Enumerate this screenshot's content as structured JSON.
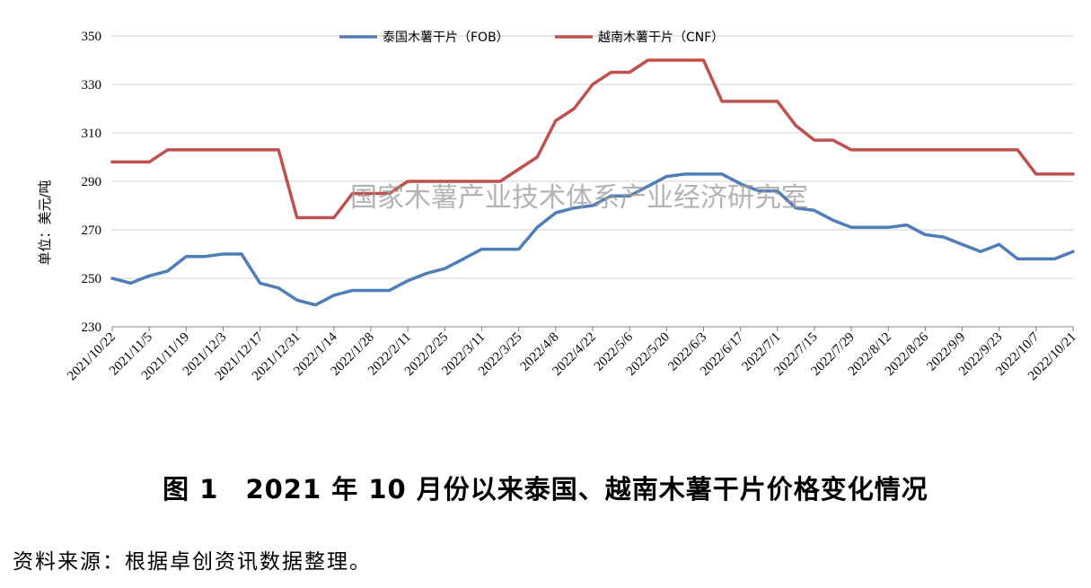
{
  "chart_data": {
    "type": "line",
    "ylabel": "单位：美元/吨",
    "ylim": [
      230,
      350
    ],
    "yticks": [
      230,
      250,
      270,
      290,
      310,
      330,
      350
    ],
    "grid": "horizontal",
    "legend_position": "top-center",
    "x_tick_labels": [
      "2021/10/22",
      "2021/11/5",
      "2021/11/19",
      "2021/12/3",
      "2021/12/17",
      "2021/12/31",
      "2022/1/14",
      "2022/1/28",
      "2022/2/11",
      "2022/2/25",
      "2022/3/11",
      "2022/3/25",
      "2022/4/8",
      "2022/4/22",
      "2022/5/6",
      "2022/5/20",
      "2022/6/3",
      "2022/6/17",
      "2022/7/1",
      "2022/7/15",
      "2022/7/29",
      "2022/8/12",
      "2022/8/26",
      "2022/9/9",
      "2022/9/23",
      "2022/10/7",
      "2022/10/21"
    ],
    "series": [
      {
        "name": "泰国木薯干片（FOB）",
        "color": "#4f7db8",
        "values": [
          250,
          248,
          251,
          253,
          259,
          259,
          260,
          260,
          248,
          246,
          241,
          239,
          243,
          245,
          245,
          245,
          249,
          252,
          254,
          258,
          262,
          262,
          262,
          271,
          277,
          279,
          280,
          284,
          284,
          288,
          292,
          293,
          293,
          293,
          289,
          286,
          286,
          279,
          278,
          274,
          271,
          271,
          271,
          272,
          268,
          267,
          264,
          261,
          264,
          258,
          258,
          258,
          261
        ]
      },
      {
        "name": "越南木薯干片（CNF）",
        "color": "#c0504d",
        "values": [
          298,
          298,
          298,
          303,
          303,
          303,
          303,
          303,
          303,
          303,
          275,
          275,
          275,
          285,
          285,
          285,
          290,
          290,
          290,
          290,
          290,
          290,
          295,
          300,
          315,
          320,
          330,
          335,
          335,
          340,
          340,
          340,
          340,
          323,
          323,
          323,
          323,
          313,
          307,
          307,
          303,
          303,
          303,
          303,
          303,
          303,
          303,
          303,
          303,
          303,
          293,
          293,
          293
        ]
      }
    ]
  },
  "watermark": "国家木薯产业技术体系产业经济研究室",
  "caption": "图 1　2021 年 10 月份以来泰国、越南木薯干片价格变化情况",
  "source": "资料来源：根据卓创资讯数据整理。"
}
